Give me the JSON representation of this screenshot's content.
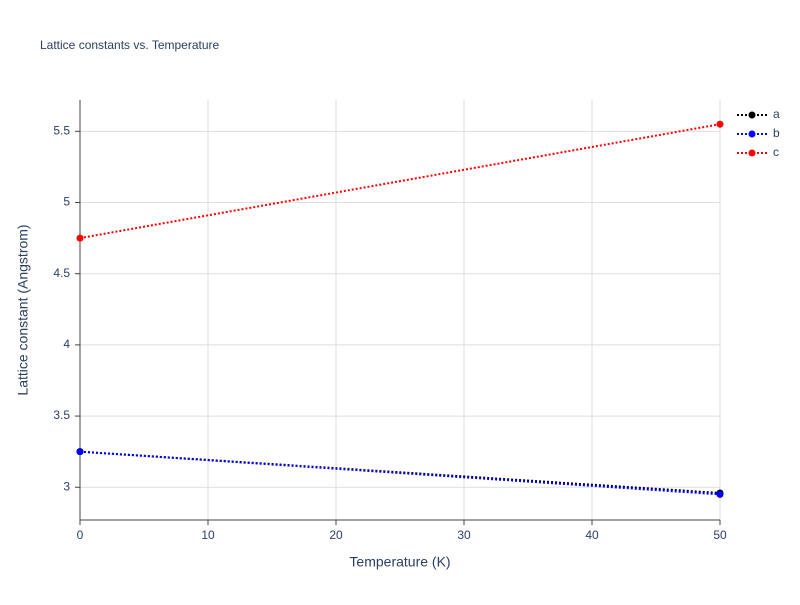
{
  "chart_data": {
    "type": "line",
    "title": "Lattice constants vs. Temperature",
    "xlabel": "Temperature (K)",
    "ylabel": "Lattice constant (Angstrom)",
    "x": [
      0,
      50
    ],
    "series": [
      {
        "name": "a",
        "color": "#000000",
        "values": [
          3.25,
          2.96
        ]
      },
      {
        "name": "b",
        "color": "#0000ff",
        "values": [
          3.25,
          2.95
        ]
      },
      {
        "name": "c",
        "color": "#ff0000",
        "values": [
          4.75,
          5.55
        ]
      }
    ],
    "xlim": [
      0,
      50
    ],
    "xticks": [
      0,
      10,
      20,
      30,
      40,
      50
    ],
    "ylim": [
      2.77,
      5.72
    ],
    "yticks": [
      3,
      3.5,
      4,
      4.5,
      5,
      5.5
    ],
    "grid": true,
    "legend": "right"
  }
}
